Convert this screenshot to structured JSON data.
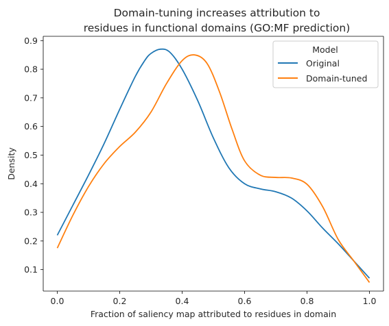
{
  "chart_data": {
    "type": "line",
    "title_lines": [
      "Domain-tuning increases attribution to",
      "residues in functional domains (GO:MF prediction)"
    ],
    "xlabel": "Fraction of saliency map attributed to residues in domain",
    "ylabel": "Density",
    "xlim": [
      -0.045,
      1.045
    ],
    "ylim": [
      0.025,
      0.915
    ],
    "x_ticks": [
      0.0,
      0.2,
      0.4,
      0.6,
      0.8,
      1.0
    ],
    "x_tick_labels": [
      "0.0",
      "0.2",
      "0.4",
      "0.6",
      "0.8",
      "1.0"
    ],
    "y_ticks": [
      0.1,
      0.2,
      0.3,
      0.4,
      0.5,
      0.6,
      0.7,
      0.8,
      0.9
    ],
    "y_tick_labels": [
      "0.1",
      "0.2",
      "0.3",
      "0.4",
      "0.5",
      "0.6",
      "0.7",
      "0.8",
      "0.9"
    ],
    "grid": false,
    "legend": {
      "title": "Model",
      "placement": "top-right"
    },
    "series": [
      {
        "name": "Original",
        "color": "#1f77b4",
        "points": [
          [
            0.0,
            0.22
          ],
          [
            0.05,
            0.325
          ],
          [
            0.1,
            0.43
          ],
          [
            0.15,
            0.54
          ],
          [
            0.2,
            0.66
          ],
          [
            0.25,
            0.775
          ],
          [
            0.28,
            0.83
          ],
          [
            0.3,
            0.855
          ],
          [
            0.33,
            0.87
          ],
          [
            0.36,
            0.86
          ],
          [
            0.4,
            0.8
          ],
          [
            0.45,
            0.69
          ],
          [
            0.5,
            0.56
          ],
          [
            0.55,
            0.455
          ],
          [
            0.6,
            0.4
          ],
          [
            0.65,
            0.382
          ],
          [
            0.7,
            0.372
          ],
          [
            0.75,
            0.35
          ],
          [
            0.8,
            0.305
          ],
          [
            0.85,
            0.245
          ],
          [
            0.9,
            0.19
          ],
          [
            0.95,
            0.13
          ],
          [
            1.0,
            0.07
          ]
        ]
      },
      {
        "name": "Domain-tuned",
        "color": "#ff7f0e",
        "points": [
          [
            0.0,
            0.175
          ],
          [
            0.05,
            0.29
          ],
          [
            0.1,
            0.39
          ],
          [
            0.15,
            0.47
          ],
          [
            0.2,
            0.53
          ],
          [
            0.25,
            0.58
          ],
          [
            0.3,
            0.65
          ],
          [
            0.35,
            0.75
          ],
          [
            0.4,
            0.83
          ],
          [
            0.44,
            0.85
          ],
          [
            0.48,
            0.82
          ],
          [
            0.52,
            0.72
          ],
          [
            0.56,
            0.59
          ],
          [
            0.6,
            0.48
          ],
          [
            0.65,
            0.43
          ],
          [
            0.7,
            0.422
          ],
          [
            0.75,
            0.42
          ],
          [
            0.8,
            0.398
          ],
          [
            0.85,
            0.32
          ],
          [
            0.9,
            0.205
          ],
          [
            0.95,
            0.13
          ],
          [
            1.0,
            0.055
          ]
        ]
      }
    ]
  }
}
